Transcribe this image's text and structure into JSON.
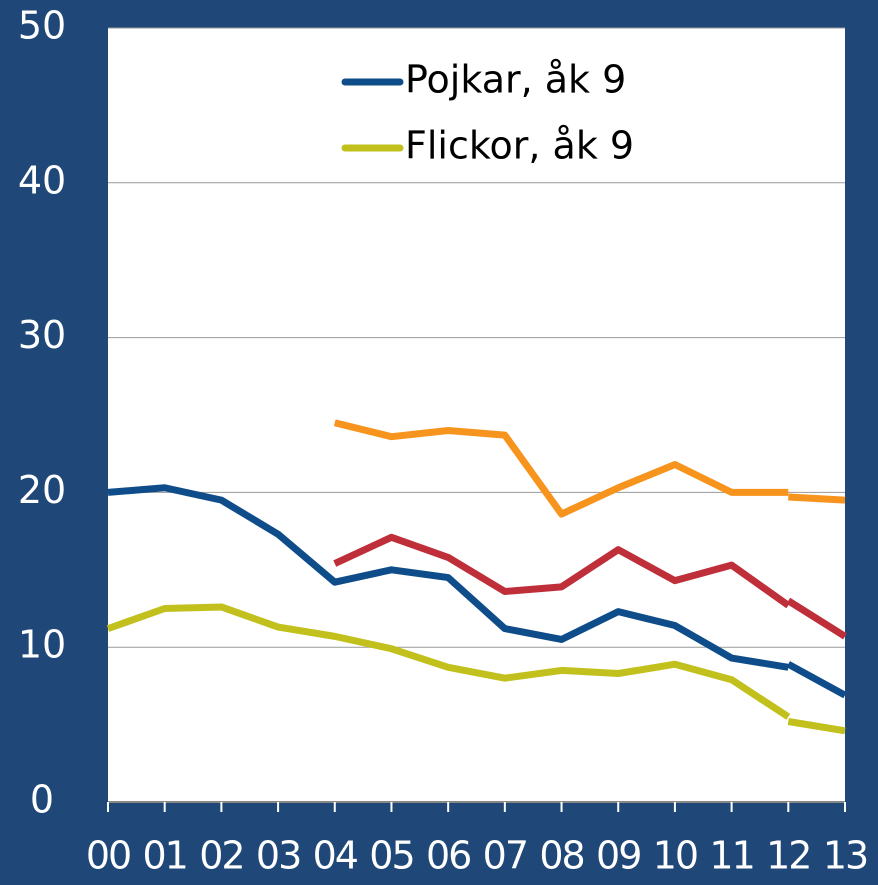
{
  "chart_data": {
    "type": "line",
    "categories": [
      "00",
      "01",
      "02",
      "03",
      "04",
      "05",
      "06",
      "07",
      "08",
      "09",
      "10",
      "11",
      "12",
      "13"
    ],
    "series": [
      {
        "name": "Pojkar, åk 9",
        "color": "#0e4c8a",
        "values": [
          20.0,
          20.3,
          19.5,
          17.3,
          14.2,
          15.0,
          14.5,
          11.2,
          10.5,
          12.3,
          11.4,
          9.3,
          8.7,
          null
        ]
      },
      {
        "color": "#0e4c8a",
        "values": [
          null,
          null,
          null,
          null,
          null,
          null,
          null,
          null,
          null,
          null,
          null,
          null,
          8.9,
          6.9
        ]
      },
      {
        "name": "Flickor, åk 9",
        "color": "#c2c01c",
        "values": [
          11.2,
          12.5,
          12.6,
          11.3,
          10.7,
          9.9,
          8.7,
          8.0,
          8.5,
          8.3,
          8.9,
          7.9,
          5.5,
          null
        ]
      },
      {
        "color": "#c2c01c",
        "values": [
          null,
          null,
          null,
          null,
          null,
          null,
          null,
          null,
          null,
          null,
          null,
          null,
          5.2,
          4.6
        ]
      },
      {
        "color": "#f7941d",
        "values": [
          null,
          null,
          null,
          null,
          24.5,
          23.6,
          24.0,
          23.7,
          18.6,
          20.3,
          21.8,
          20.0,
          20.0,
          null
        ]
      },
      {
        "color": "#f7941d",
        "values": [
          null,
          null,
          null,
          null,
          null,
          null,
          null,
          null,
          null,
          null,
          null,
          null,
          19.7,
          19.5
        ]
      },
      {
        "color": "#be2f3a",
        "values": [
          null,
          null,
          null,
          null,
          15.4,
          17.1,
          15.8,
          13.6,
          13.9,
          16.3,
          14.3,
          15.3,
          12.7,
          null
        ]
      },
      {
        "color": "#be2f3a",
        "values": [
          null,
          null,
          null,
          null,
          null,
          null,
          null,
          null,
          null,
          null,
          null,
          null,
          13.0,
          10.7
        ]
      }
    ],
    "ylim": [
      0,
      50
    ],
    "yticks": [
      0,
      10,
      20,
      30,
      40,
      50
    ],
    "grid": true,
    "legend": "top"
  }
}
